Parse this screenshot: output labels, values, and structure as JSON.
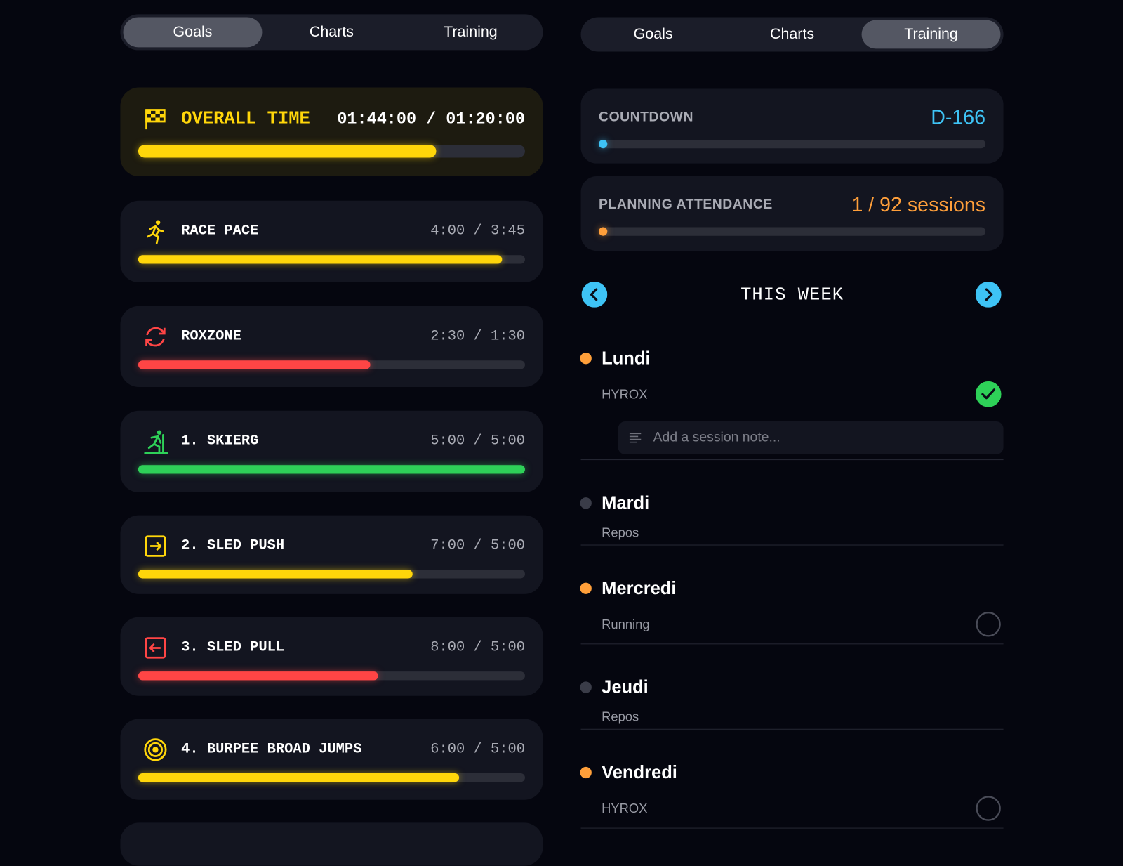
{
  "left_panel": {
    "tabs": [
      "Goals",
      "Charts",
      "Training"
    ],
    "active_tab": 0,
    "goals": [
      {
        "icon": "flag",
        "title": "OVERALL TIME",
        "value": "01:44:00 / 01:20:00",
        "progress": 77,
        "color": "#ffd60a"
      },
      {
        "icon": "run",
        "title": "RACE PACE",
        "value": "4:00 / 3:45",
        "progress": 94,
        "color": "#ffd60a"
      },
      {
        "icon": "cycle",
        "title": "ROXZONE",
        "value": "2:30 / 1:30",
        "progress": 60,
        "color": "#ff4545"
      },
      {
        "icon": "ski",
        "title": "1. SKIERG",
        "value": "5:00 / 5:00",
        "progress": 100,
        "color": "#2ed158"
      },
      {
        "icon": "push",
        "title": "2. SLED PUSH",
        "value": "7:00 / 5:00",
        "progress": 71,
        "color": "#ffd60a"
      },
      {
        "icon": "pull",
        "title": "3. SLED PULL",
        "value": "8:00 / 5:00",
        "progress": 62,
        "color": "#ff4545"
      },
      {
        "icon": "target",
        "title": "4. BURPEE BROAD JUMPS",
        "value": "6:00 / 5:00",
        "progress": 83,
        "color": "#ffd60a"
      }
    ]
  },
  "right_panel": {
    "tabs": [
      "Goals",
      "Charts",
      "Training"
    ],
    "active_tab": 2,
    "countdown": {
      "label": "COUNTDOWN",
      "value": "D-166",
      "progress": 1,
      "color": "#3ec3f5"
    },
    "attendance": {
      "label": "PLANNING ATTENDANCE",
      "value": "1 / 92 sessions",
      "progress": 1,
      "color": "#ff9f3a"
    },
    "week": {
      "title": "THIS WEEK",
      "days": [
        {
          "name": "Lundi",
          "session": "HYROX",
          "status": "done",
          "note_placeholder": "Add a session note..."
        },
        {
          "name": "Mardi",
          "session": "Repos",
          "status": "rest"
        },
        {
          "name": "Mercredi",
          "session": "Running",
          "status": "pending"
        },
        {
          "name": "Jeudi",
          "session": "Repos",
          "status": "rest"
        },
        {
          "name": "Vendredi",
          "session": "HYROX",
          "status": "pending"
        }
      ]
    }
  }
}
